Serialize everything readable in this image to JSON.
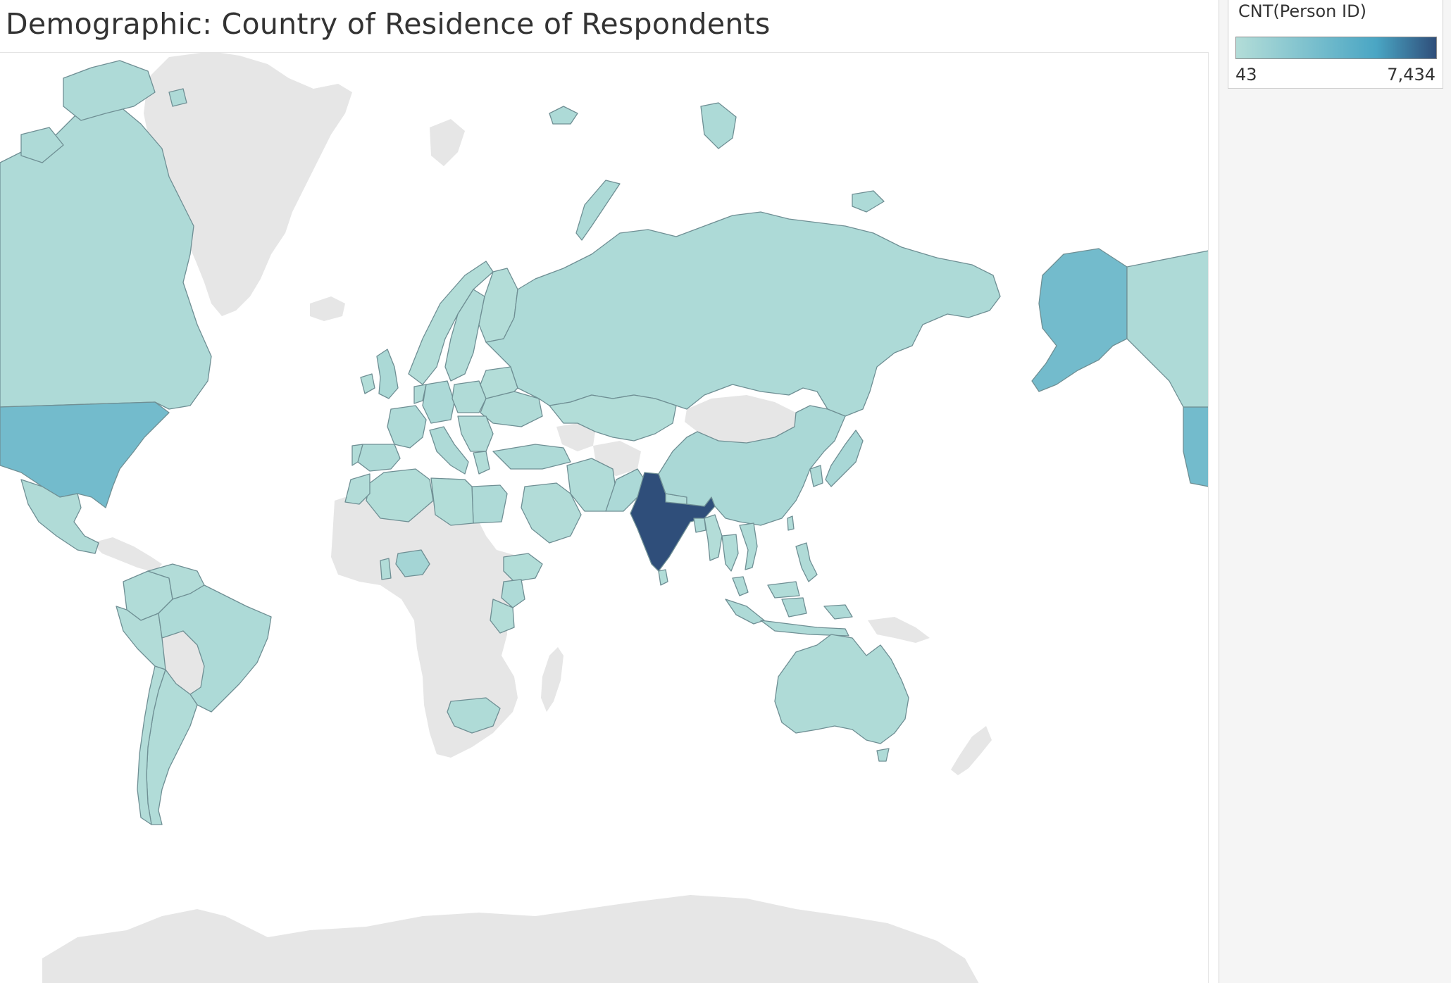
{
  "title": "Demographic: Country of Residence of Respondents",
  "legend": {
    "field": "CNT(Person ID)",
    "min_label": "43",
    "max_label": "7,434",
    "min_value": 43,
    "max_value": 7434,
    "ramp_colors": [
      "#b3ddd8",
      "#4aa6c4",
      "#2f4e7a"
    ]
  },
  "colors": {
    "no_data_land": "#e6e6e6",
    "border": "#6f8f94",
    "ocean": "#ffffff"
  },
  "chart_data": {
    "type": "choropleth",
    "measure": "CNT(Person ID)",
    "color_range": [
      43,
      7434
    ],
    "countries": [
      {
        "name": "India",
        "value": 7434
      },
      {
        "name": "United States",
        "value": 3200
      },
      {
        "name": "Canada",
        "value": 300
      },
      {
        "name": "Brazil",
        "value": 350
      },
      {
        "name": "Russia",
        "value": 350
      },
      {
        "name": "China",
        "value": 500
      },
      {
        "name": "Australia",
        "value": 250
      },
      {
        "name": "Mexico",
        "value": 200
      },
      {
        "name": "Argentina",
        "value": 150
      },
      {
        "name": "Colombia",
        "value": 150
      },
      {
        "name": "Peru",
        "value": 100
      },
      {
        "name": "Chile",
        "value": 100
      },
      {
        "name": "Venezuela",
        "value": 100
      },
      {
        "name": "Kazakhstan",
        "value": 80
      },
      {
        "name": "Iran",
        "value": 150
      },
      {
        "name": "Saudi Arabia",
        "value": 100
      },
      {
        "name": "Egypt",
        "value": 300
      },
      {
        "name": "Turkey",
        "value": 300
      },
      {
        "name": "Algeria",
        "value": 80
      },
      {
        "name": "Morocco",
        "value": 100
      },
      {
        "name": "Tunisia",
        "value": 80
      },
      {
        "name": "Nigeria",
        "value": 800
      },
      {
        "name": "Ghana",
        "value": 100
      },
      {
        "name": "Kenya",
        "value": 300
      },
      {
        "name": "Ethiopia",
        "value": 80
      },
      {
        "name": "Tanzania",
        "value": 60
      },
      {
        "name": "Uganda",
        "value": 60
      },
      {
        "name": "South Africa",
        "value": 250
      },
      {
        "name": "Pakistan",
        "value": 400
      },
      {
        "name": "Bangladesh",
        "value": 300
      },
      {
        "name": "Nepal",
        "value": 100
      },
      {
        "name": "Sri Lanka",
        "value": 80
      },
      {
        "name": "Myanmar",
        "value": 60
      },
      {
        "name": "Thailand",
        "value": 150
      },
      {
        "name": "Vietnam",
        "value": 250
      },
      {
        "name": "Malaysia",
        "value": 150
      },
      {
        "name": "Indonesia",
        "value": 300
      },
      {
        "name": "Philippines",
        "value": 200
      },
      {
        "name": "Japan",
        "value": 600
      },
      {
        "name": "South Korea",
        "value": 300
      },
      {
        "name": "Taiwan",
        "value": 150
      },
      {
        "name": "United Kingdom",
        "value": 450
      },
      {
        "name": "Ireland",
        "value": 80
      },
      {
        "name": "France",
        "value": 300
      },
      {
        "name": "Spain",
        "value": 300
      },
      {
        "name": "Portugal",
        "value": 150
      },
      {
        "name": "Germany",
        "value": 400
      },
      {
        "name": "Italy",
        "value": 300
      },
      {
        "name": "Poland",
        "value": 200
      },
      {
        "name": "Ukraine",
        "value": 200
      },
      {
        "name": "Sweden",
        "value": 100
      },
      {
        "name": "Norway",
        "value": 60
      },
      {
        "name": "Finland",
        "value": 60
      },
      {
        "name": "Greece",
        "value": 80
      },
      {
        "name": "Romania",
        "value": 100
      },
      {
        "name": "Netherlands",
        "value": 200
      },
      {
        "name": "Belgium",
        "value": 100
      },
      {
        "name": "Switzerland",
        "value": 100
      },
      {
        "name": "Austria",
        "value": 60
      },
      {
        "name": "Czech Republic",
        "value": 80
      },
      {
        "name": "Hungary",
        "value": 60
      },
      {
        "name": "Belarus",
        "value": 60
      },
      {
        "name": "Israel",
        "value": 100
      },
      {
        "name": "United Arab Emirates",
        "value": 100
      },
      {
        "name": "Singapore",
        "value": 150
      },
      {
        "name": "Denmark",
        "value": 60
      }
    ]
  }
}
